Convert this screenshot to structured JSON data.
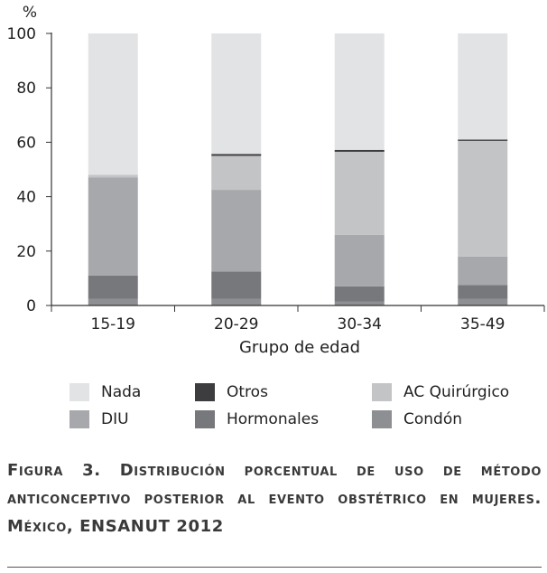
{
  "chart_data": {
    "type": "bar",
    "stacked": true,
    "y_unit_label": "%",
    "ylim": [
      0,
      100
    ],
    "yticks": [
      0,
      20,
      40,
      60,
      80,
      100
    ],
    "xlabel": "Grupo de edad",
    "categories": [
      "15-19",
      "20-29",
      "30-34",
      "35-49"
    ],
    "series": [
      {
        "name": "Condón",
        "color": "#8e8f92",
        "values": [
          2.5,
          2.5,
          1.5,
          2.5
        ]
      },
      {
        "name": "Hormonales",
        "color": "#77787b",
        "values": [
          8.5,
          10.0,
          5.5,
          5.0
        ]
      },
      {
        "name": "DIU",
        "color": "#a7a8ab",
        "values": [
          36.0,
          30.0,
          19.0,
          10.5
        ]
      },
      {
        "name": "AC Quirúrgico",
        "color": "#c3c4c6",
        "values": [
          1.0,
          12.5,
          30.5,
          42.5
        ]
      },
      {
        "name": "Otros",
        "color": "#3d3d3f",
        "values": [
          0.0,
          0.7,
          0.7,
          0.5
        ]
      },
      {
        "name": "Nada",
        "color": "#e2e3e5",
        "values": [
          52.0,
          44.3,
          42.8,
          39.0
        ]
      }
    ],
    "legend_rows": [
      [
        "Nada",
        "Otros",
        "AC Quirúrgico"
      ],
      [
        "DIU",
        "Hormonales",
        "Condón"
      ]
    ]
  },
  "caption": {
    "text": "Figura 3. Distribución porcentual de uso de método anticonceptivo posterior al evento obstétrico en mujeres. México, ENSANUT 2012"
  }
}
